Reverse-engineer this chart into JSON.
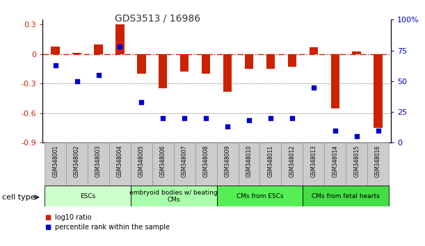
{
  "title": "GDS3513 / 16986",
  "samples": [
    "GSM348001",
    "GSM348002",
    "GSM348003",
    "GSM348004",
    "GSM348005",
    "GSM348006",
    "GSM348007",
    "GSM348008",
    "GSM348009",
    "GSM348010",
    "GSM348011",
    "GSM348012",
    "GSM348013",
    "GSM348014",
    "GSM348015",
    "GSM348016"
  ],
  "log10_ratio": [
    0.08,
    0.01,
    0.1,
    0.3,
    -0.2,
    -0.35,
    -0.18,
    -0.2,
    -0.38,
    -0.15,
    -0.15,
    -0.13,
    0.07,
    -0.55,
    0.03,
    -0.75
  ],
  "percentile_rank": [
    63,
    50,
    55,
    78,
    33,
    20,
    20,
    20,
    13,
    18,
    20,
    20,
    45,
    10,
    5,
    10
  ],
  "ylim_left": [
    -0.9,
    0.35
  ],
  "ylim_right": [
    0,
    100
  ],
  "yticks_left": [
    -0.9,
    -0.6,
    -0.3,
    0.0,
    0.3
  ],
  "yticks_right": [
    0,
    25,
    50,
    75,
    100
  ],
  "ytick_labels_left": [
    "-0.9",
    "-0.6",
    "-0.3",
    "0",
    "0.3"
  ],
  "ytick_labels_right": [
    "0",
    "25",
    "50",
    "75",
    "100%"
  ],
  "bar_color": "#cc2200",
  "dot_color": "#0000cc",
  "cell_types": [
    {
      "label": "ESCs",
      "start": 0,
      "end": 3,
      "color": "#ccffcc"
    },
    {
      "label": "embryoid bodies w/ beating\nCMs",
      "start": 4,
      "end": 7,
      "color": "#aaffaa"
    },
    {
      "label": "CMs from ESCs",
      "start": 8,
      "end": 11,
      "color": "#55ee55"
    },
    {
      "label": "CMs from fetal hearts",
      "start": 12,
      "end": 15,
      "color": "#44dd44"
    }
  ],
  "legend_bar_label": "log10 ratio",
  "legend_dot_label": "percentile rank within the sample",
  "xlabel_cell_type": "cell type",
  "bg_color": "#ffffff",
  "tick_bg_color": "#cccccc",
  "hline_color": "#cc2200",
  "dotline_color": "#555555"
}
